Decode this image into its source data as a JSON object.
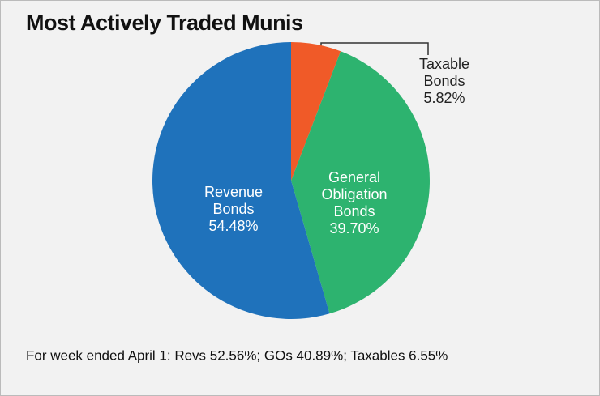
{
  "chart_data": {
    "type": "pie",
    "title": "Most Actively Traded Munis",
    "categories": [
      "Taxable Bonds",
      "General Obligation Bonds",
      "Revenue Bonds"
    ],
    "values": [
      5.82,
      39.7,
      54.48
    ],
    "value_labels": [
      "5.82%",
      "39.70%",
      "54.48%"
    ],
    "colors": [
      "#f05a28",
      "#2db36f",
      "#1f72bb"
    ],
    "note": "For week ended April 1: Revs 52.56%; GOs 40.89%; Taxables 6.55%"
  }
}
